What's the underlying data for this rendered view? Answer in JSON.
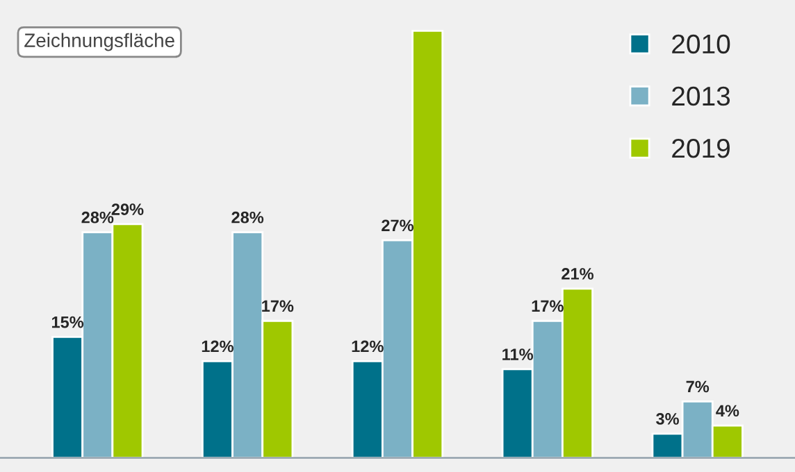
{
  "chart_data": {
    "type": "bar",
    "categories": [
      null,
      null,
      null,
      null,
      null
    ],
    "series": [
      {
        "name": "2010",
        "color": "#00718a",
        "values": [
          15,
          12,
          12,
          11,
          3
        ],
        "value_labels": [
          "15%",
          "12%",
          "12%",
          "11%",
          "3%"
        ]
      },
      {
        "name": "2013",
        "color": "#7bb1c5",
        "values": [
          28,
          28,
          27,
          17,
          7
        ],
        "value_labels": [
          "28%",
          "28%",
          "27%",
          "17%",
          "7%"
        ]
      },
      {
        "name": "2019",
        "color": "#9fc800",
        "values": [
          29,
          17,
          53,
          21,
          4
        ],
        "value_labels": [
          "29%",
          "17%",
          null,
          "21%",
          "4%"
        ]
      }
    ],
    "legend": "top right",
    "grid": false,
    "annotations": [
      "Zeichnungsfläche"
    ]
  }
}
